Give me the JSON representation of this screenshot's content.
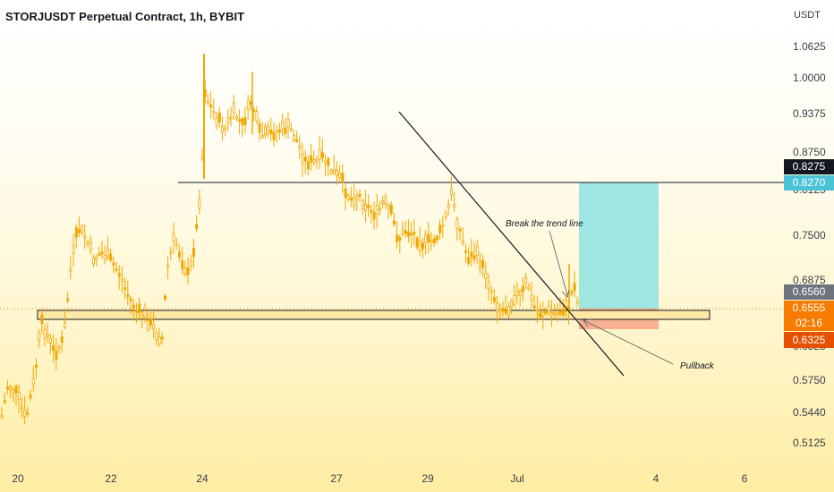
{
  "header": {
    "title": "STORJUSDT Perpetual Contract, 1h, BYBIT",
    "currency": "USDT"
  },
  "axis": {
    "y_ticks": [
      "1.0625",
      "1.0000",
      "0.9375",
      "0.8750",
      "0.8125",
      "0.7500",
      "0.6875",
      "0.6325",
      "0.5750",
      "0.5440",
      "0.5125"
    ],
    "x_ticks": [
      "20",
      "22",
      "24",
      "27",
      "29",
      "Jul",
      "4",
      "6"
    ]
  },
  "badges": {
    "level_high": "0.8275",
    "level_target": "0.8270",
    "level_gray": "0.6560",
    "last_price": "0.6555",
    "countdown": "02:16",
    "stop_level": "0.6325"
  },
  "annotations": {
    "break_label": "Break the trend line",
    "pullback_label": "Pullback"
  },
  "colors": {
    "candle": "#f0a800",
    "black_badge": "#131722",
    "cyan_badge": "#4ac3d6",
    "gray_badge": "#6e7380",
    "orange_badge": "#f57c00",
    "red_badge": "#e65100",
    "target_zone": "#8ee3e3",
    "stop_zone": "#f7a98a"
  },
  "chart_data": {
    "type": "candlestick",
    "symbol": "STORJUSDT",
    "timeframe": "1h",
    "exchange": "BYBIT",
    "close_path": [
      [
        "20",
        0.58
      ],
      [
        "20.5",
        0.66
      ],
      [
        "21",
        0.63
      ],
      [
        "21.5",
        0.75
      ],
      [
        "22",
        0.72
      ],
      [
        "22.5",
        0.67
      ],
      [
        "23",
        0.64
      ],
      [
        "23.5",
        0.73
      ],
      [
        "24",
        0.99
      ],
      [
        "25",
        0.94
      ],
      [
        "26",
        0.88
      ],
      [
        "27",
        0.82
      ],
      [
        "28",
        0.79
      ],
      [
        "28.5",
        0.75
      ],
      [
        "29",
        0.77
      ],
      [
        "29.5",
        0.73
      ],
      [
        "30",
        0.66
      ],
      [
        "Jul 1",
        0.67
      ],
      [
        "Jul 1.5",
        0.6555
      ]
    ],
    "horizontal_levels": [
      0.8275,
      0.66
    ],
    "trend_line_break_level": 0.656,
    "target": 0.827,
    "stop": 0.6325,
    "last_price": 0.6555
  }
}
